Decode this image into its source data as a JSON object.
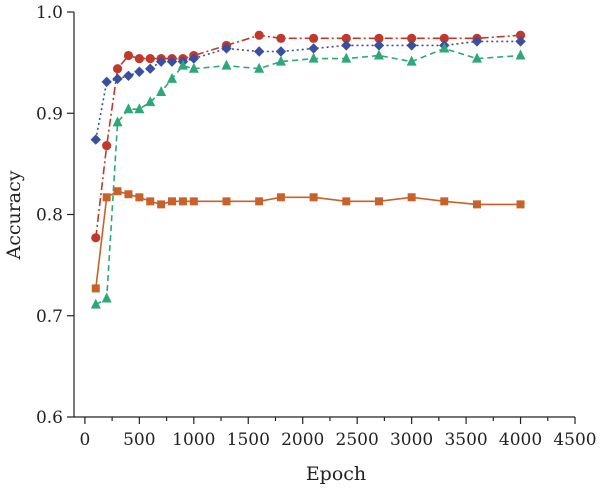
{
  "chart_data": {
    "type": "line",
    "title": "",
    "xlabel": "Epoch",
    "ylabel": "Accuracy",
    "xlim": [
      -100,
      4500
    ],
    "ylim": [
      0.6,
      1.0
    ],
    "xticks": [
      0,
      500,
      1000,
      1500,
      2000,
      2500,
      3000,
      3500,
      4000,
      4500
    ],
    "yticks": [
      0.6,
      0.7,
      0.8,
      0.9,
      1.0
    ],
    "xtick_labels": [
      "0",
      "500",
      "1000",
      "1500",
      "2000",
      "2500",
      "3000",
      "3500",
      "4000",
      "4500"
    ],
    "ytick_labels": [
      "0.6",
      "0.7",
      "0.8",
      "0.9",
      "1.0"
    ],
    "grid": false,
    "legend": "none",
    "series": [
      {
        "color": "#C0392B",
        "marker": "circle",
        "line_style": "dashdot",
        "points": [
          [
            100,
            0.777
          ],
          [
            200,
            0.868
          ],
          [
            300,
            0.944
          ],
          [
            400,
            0.957
          ],
          [
            500,
            0.954
          ],
          [
            600,
            0.954
          ],
          [
            700,
            0.954
          ],
          [
            800,
            0.954
          ],
          [
            900,
            0.954
          ],
          [
            1000,
            0.957
          ],
          [
            1300,
            0.967
          ],
          [
            1600,
            0.977
          ],
          [
            1800,
            0.974
          ],
          [
            2100,
            0.974
          ],
          [
            2400,
            0.974
          ],
          [
            2700,
            0.974
          ],
          [
            3000,
            0.974
          ],
          [
            3300,
            0.974
          ],
          [
            3600,
            0.974
          ],
          [
            4000,
            0.977
          ]
        ]
      },
      {
        "color": "#3A4FA0",
        "marker": "diamond",
        "line_style": "dotted",
        "points": [
          [
            100,
            0.874
          ],
          [
            200,
            0.931
          ],
          [
            300,
            0.934
          ],
          [
            400,
            0.937
          ],
          [
            500,
            0.941
          ],
          [
            600,
            0.944
          ],
          [
            700,
            0.951
          ],
          [
            800,
            0.951
          ],
          [
            900,
            0.951
          ],
          [
            1000,
            0.954
          ],
          [
            1300,
            0.964
          ],
          [
            1600,
            0.961
          ],
          [
            1800,
            0.961
          ],
          [
            2100,
            0.964
          ],
          [
            2400,
            0.967
          ],
          [
            2700,
            0.967
          ],
          [
            3000,
            0.967
          ],
          [
            3300,
            0.967
          ],
          [
            3600,
            0.971
          ],
          [
            4000,
            0.971
          ]
        ]
      },
      {
        "color": "#2EA878",
        "marker": "triangle",
        "line_style": "dashed",
        "points": [
          [
            100,
            0.711
          ],
          [
            200,
            0.717
          ],
          [
            300,
            0.891
          ],
          [
            400,
            0.904
          ],
          [
            500,
            0.904
          ],
          [
            600,
            0.911
          ],
          [
            700,
            0.921
          ],
          [
            800,
            0.934
          ],
          [
            900,
            0.947
          ],
          [
            1000,
            0.944
          ],
          [
            1300,
            0.947
          ],
          [
            1600,
            0.944
          ],
          [
            1800,
            0.951
          ],
          [
            2100,
            0.954
          ],
          [
            2400,
            0.954
          ],
          [
            2700,
            0.957
          ],
          [
            3000,
            0.951
          ],
          [
            3300,
            0.964
          ],
          [
            3600,
            0.954
          ],
          [
            4000,
            0.957
          ]
        ]
      },
      {
        "color": "#C8622A",
        "marker": "square",
        "line_style": "solid",
        "points": [
          [
            100,
            0.727
          ],
          [
            200,
            0.817
          ],
          [
            300,
            0.823
          ],
          [
            400,
            0.82
          ],
          [
            500,
            0.817
          ],
          [
            600,
            0.813
          ],
          [
            700,
            0.81
          ],
          [
            800,
            0.813
          ],
          [
            900,
            0.813
          ],
          [
            1000,
            0.813
          ],
          [
            1300,
            0.813
          ],
          [
            1600,
            0.813
          ],
          [
            1800,
            0.817
          ],
          [
            2100,
            0.817
          ],
          [
            2400,
            0.813
          ],
          [
            2700,
            0.813
          ],
          [
            3000,
            0.817
          ],
          [
            3300,
            0.813
          ],
          [
            3600,
            0.81
          ],
          [
            4000,
            0.81
          ]
        ]
      }
    ]
  }
}
